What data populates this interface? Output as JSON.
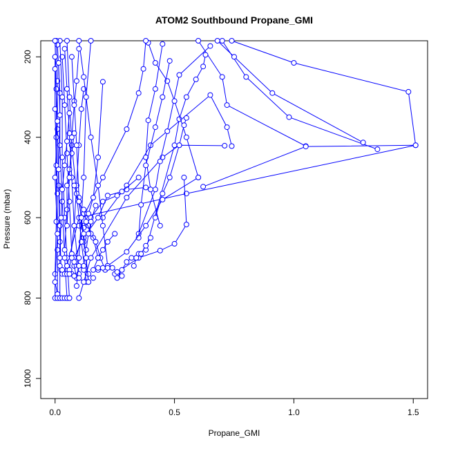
{
  "chart_data": {
    "type": "line",
    "title": "ATOM2 Southbound Propane_GMI",
    "xlabel": "Propane_GMI",
    "ylabel": "Pressure (mbar)",
    "xlim": [
      -0.06,
      1.56
    ],
    "ylim": [
      1050,
      160
    ],
    "y_reversed": true,
    "x_ticks": [
      "0.0",
      "0.5",
      "1.0",
      "1.5"
    ],
    "x_tick_values": [
      0,
      0.5,
      1.0,
      1.5
    ],
    "y_ticks": [
      "200",
      "400",
      "600",
      "800",
      "1000"
    ],
    "y_tick_values": [
      200,
      400,
      600,
      800,
      1000
    ],
    "grid": false,
    "marker": "open-circle",
    "series_color": "#0000ff",
    "series": [
      {
        "x": [
          1.51,
          1.48,
          1.0,
          0.74
        ],
        "y": [
          420,
          287,
          215,
          160
        ]
      },
      {
        "x": [
          1.35,
          0.98,
          0.8,
          0.7
        ],
        "y": [
          430,
          350,
          250,
          160
        ]
      },
      {
        "x": [
          1.29,
          0.91,
          0.75,
          0.68
        ],
        "y": [
          413,
          290,
          200,
          160
        ]
      },
      {
        "x": [
          1.05,
          0.72,
          0.7,
          0.6
        ],
        "y": [
          422,
          320,
          250,
          160
        ]
      },
      {
        "x": [
          0.62,
          1.05,
          1.51,
          0.55,
          0.1,
          0.05
        ],
        "y": [
          523,
          423,
          420,
          540,
          600,
          720
        ]
      },
      {
        "x": [
          0.74,
          0.72,
          0.65,
          0.4,
          0.3,
          0.2
        ],
        "y": [
          422,
          375,
          295,
          420,
          520,
          600
        ]
      },
      {
        "x": [
          0.71,
          0.52,
          0.45,
          0.3,
          0.15,
          0.1
        ],
        "y": [
          421,
          420,
          450,
          550,
          700,
          800
        ]
      },
      {
        "x": [
          0.63,
          0.62,
          0.59,
          0.55,
          0.52,
          0.5,
          0.38
        ],
        "y": [
          195,
          224,
          256,
          300,
          355,
          420,
          680
        ]
      },
      {
        "x": [
          0.65,
          0.52,
          0.47,
          0.44,
          0.42,
          0.35
        ],
        "y": [
          173,
          245,
          385,
          460,
          530,
          640
        ]
      },
      {
        "x": [
          0.39,
          0.42,
          0.47,
          0.5,
          0.55,
          0.6
        ],
        "y": [
          165,
          215,
          260,
          310,
          400,
          500
        ]
      },
      {
        "x": [
          0.38,
          0.37,
          0.35,
          0.3,
          0.2,
          0.1
        ],
        "y": [
          160,
          230,
          290,
          380,
          500,
          620
        ]
      },
      {
        "x": [
          0.45,
          0.42,
          0.39,
          0.38,
          0.4,
          0.44
        ],
        "y": [
          168,
          280,
          358,
          450,
          530,
          620
        ]
      },
      {
        "x": [
          0.55,
          0.54,
          0.52,
          0.48,
          0.45,
          0.42
        ],
        "y": [
          352,
          370,
          420,
          500,
          540,
          600
        ]
      },
      {
        "x": [
          0.48,
          0.45,
          0.42,
          0.38,
          0.36,
          0.35
        ],
        "y": [
          210,
          300,
          375,
          470,
          568,
          650
        ]
      },
      {
        "x": [
          0.54,
          0.55,
          0.5,
          0.44,
          0.35,
          0.25
        ],
        "y": [
          500,
          617,
          665,
          682,
          700,
          740
        ]
      },
      {
        "x": [
          0.6,
          0.45,
          0.38,
          0.3,
          0.22,
          0.18
        ],
        "y": [
          500,
          555,
          620,
          685,
          720,
          730
        ]
      },
      {
        "x": [
          0.38,
          0.3,
          0.26,
          0.2,
          0.15,
          0.12
        ],
        "y": [
          525,
          530,
          545,
          560,
          600,
          620
        ]
      },
      {
        "x": [
          0.35,
          0.28,
          0.22,
          0.18,
          0.12,
          0.08
        ],
        "y": [
          500,
          535,
          545,
          600,
          650,
          700
        ]
      },
      {
        "x": [
          0.2,
          0.18,
          0.16,
          0.14,
          0.12,
          0.08
        ],
        "y": [
          262,
          450,
          550,
          590,
          625,
          720
        ]
      },
      {
        "x": [
          0.12,
          0.11,
          0.1,
          0.09,
          0.08,
          0.06
        ],
        "y": [
          280,
          330,
          420,
          520,
          620,
          730
        ]
      },
      {
        "x": [
          0.1,
          0.12,
          0.15,
          0.18,
          0.2,
          0.22
        ],
        "y": [
          160,
          250,
          400,
          520,
          620,
          720
        ]
      },
      {
        "x": [
          0.07,
          0.08,
          0.09,
          0.1,
          0.12,
          0.14
        ],
        "y": [
          200,
          310,
          420,
          550,
          660,
          760
        ]
      },
      {
        "x": [
          0.05,
          0.06,
          0.07,
          0.09,
          0.11,
          0.13
        ],
        "y": [
          160,
          300,
          420,
          540,
          660,
          760
        ]
      },
      {
        "x": [
          0.04,
          0.05,
          0.06,
          0.07,
          0.08,
          0.1
        ],
        "y": [
          180,
          280,
          390,
          500,
          620,
          740
        ]
      },
      {
        "x": [
          0.03,
          0.04,
          0.05,
          0.06,
          0.07,
          0.09
        ],
        "y": [
          200,
          320,
          440,
          560,
          690,
          750
        ]
      },
      {
        "x": [
          0.02,
          0.03,
          0.03,
          0.04,
          0.05,
          0.06
        ],
        "y": [
          160,
          300,
          450,
          600,
          700,
          800
        ]
      },
      {
        "x": [
          0.01,
          0.02,
          0.02,
          0.03,
          0.04,
          0.05
        ],
        "y": [
          170,
          290,
          420,
          560,
          700,
          800
        ]
      },
      {
        "x": [
          0.005,
          0.01,
          0.01,
          0.015,
          0.02,
          0.02
        ],
        "y": [
          160,
          260,
          380,
          520,
          660,
          800
        ]
      },
      {
        "x": [
          0.0,
          0.005,
          0.005,
          0.01,
          0.01,
          0.01
        ],
        "y": [
          160,
          280,
          400,
          540,
          680,
          800
        ]
      },
      {
        "x": [
          0.0,
          0.0,
          0.005,
          0.005,
          0.0,
          0.0
        ],
        "y": [
          200,
          330,
          470,
          610,
          740,
          800
        ]
      },
      {
        "x": [
          0.0,
          0.01,
          0.0,
          0.01,
          0.0,
          0.01
        ],
        "y": [
          230,
          360,
          500,
          640,
          760,
          790
        ]
      },
      {
        "x": [
          0.015,
          0.02,
          0.015,
          0.02,
          0.025,
          0.03
        ],
        "y": [
          215,
          345,
          480,
          620,
          730,
          740
        ]
      },
      {
        "x": [
          0.06,
          0.05,
          0.04,
          0.03,
          0.025,
          0.02
        ],
        "y": [
          340,
          410,
          470,
          530,
          600,
          700
        ]
      },
      {
        "x": [
          0.08,
          0.07,
          0.06,
          0.05,
          0.05,
          0.04
        ],
        "y": [
          390,
          440,
          480,
          520,
          580,
          680
        ]
      },
      {
        "x": [
          0.1,
          0.09,
          0.08,
          0.07,
          0.06,
          0.05
        ],
        "y": [
          180,
          260,
          320,
          400,
          500,
          620
        ]
      },
      {
        "x": [
          0.15,
          0.13,
          0.12,
          0.11,
          0.1,
          0.09
        ],
        "y": [
          160,
          300,
          500,
          600,
          700,
          770
        ]
      },
      {
        "x": [
          0.08,
          0.1,
          0.12,
          0.14,
          0.16,
          0.18
        ],
        "y": [
          520,
          560,
          590,
          620,
          650,
          700
        ]
      },
      {
        "x": [
          0.12,
          0.13,
          0.15,
          0.17,
          0.19,
          0.21
        ],
        "y": [
          580,
          610,
          640,
          660,
          700,
          730
        ]
      },
      {
        "x": [
          0.07,
          0.08,
          0.1,
          0.12,
          0.14,
          0.16
        ],
        "y": [
          700,
          710,
          720,
          730,
          740,
          750
        ]
      },
      {
        "x": [
          0.05,
          0.06,
          0.07,
          0.08,
          0.1,
          0.12
        ],
        "y": [
          720,
          730,
          740,
          745,
          750,
          760
        ]
      },
      {
        "x": [
          0.02,
          0.03,
          0.04,
          0.05,
          0.06
        ],
        "y": [
          720,
          730,
          740,
          740,
          740
        ]
      },
      {
        "x": [
          0.01,
          0.02,
          0.03,
          0.04,
          0.05,
          0.06
        ],
        "y": [
          800,
          800,
          800,
          800,
          800,
          800
        ]
      },
      {
        "x": [
          0.18,
          0.2,
          0.22,
          0.24,
          0.26,
          0.28
        ],
        "y": [
          725,
          725,
          725,
          725,
          735,
          745
        ]
      },
      {
        "x": [
          0.35,
          0.32,
          0.3,
          0.28,
          0.26
        ],
        "y": [
          690,
          700,
          710,
          730,
          750
        ]
      },
      {
        "x": [
          0.4,
          0.38,
          0.36,
          0.34,
          0.33
        ],
        "y": [
          650,
          670,
          690,
          700,
          720
        ]
      },
      {
        "x": [
          0.25,
          0.22,
          0.2,
          0.18,
          0.16
        ],
        "y": [
          640,
          660,
          680,
          700,
          730
        ]
      },
      {
        "x": [
          0.17,
          0.15,
          0.14,
          0.13,
          0.12
        ],
        "y": [
          570,
          610,
          640,
          680,
          720
        ]
      },
      {
        "x": [
          0.1,
          0.11,
          0.12,
          0.13,
          0.14
        ],
        "y": [
          560,
          600,
          640,
          700,
          760
        ]
      }
    ]
  }
}
